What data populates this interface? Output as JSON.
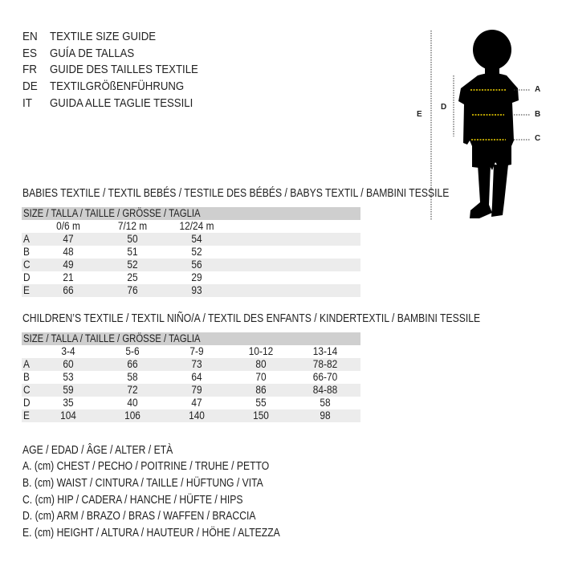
{
  "titles": [
    {
      "code": "EN",
      "text": "TEXTILE SIZE GUIDE"
    },
    {
      "code": "ES",
      "text": "GUÍA DE TALLAS"
    },
    {
      "code": "FR",
      "text": "GUIDE DES TAILLES TEXTILE"
    },
    {
      "code": "DE",
      "text": "TEXTILGRÖßENFÜHRUNG"
    },
    {
      "code": "IT",
      "text": "GUIDA ALLE TAGLIE TESSILI"
    }
  ],
  "babies": {
    "title": "BABIES TEXTILE / TEXTIL BEBÉS / TESTILE DES BÉBÉS / BABYS TEXTIL / BAMBINI TESSILE",
    "size_header": "SIZE / TALLA / TAILLE / GRÖSSE / TAGLIA",
    "columns": [
      "0/6 m",
      "7/12 m",
      "12/24 m"
    ],
    "rows": [
      {
        "label": "A",
        "values": [
          "47",
          "50",
          "54"
        ]
      },
      {
        "label": "B",
        "values": [
          "48",
          "51",
          "52"
        ]
      },
      {
        "label": "C",
        "values": [
          "49",
          "52",
          "56"
        ]
      },
      {
        "label": "D",
        "values": [
          "21",
          "25",
          "29"
        ]
      },
      {
        "label": "E",
        "values": [
          "66",
          "76",
          "93"
        ]
      }
    ]
  },
  "children": {
    "title": "CHILDREN’S TEXTILE / TEXTIL NIÑO/A / TEXTIL DES ENFANTS / KINDERTEXTIL / BAMBINI TESSILE",
    "size_header": "SIZE / TALLA / TAILLE / GRÖSSE / TAGLIA",
    "columns": [
      "3-4",
      "5-6",
      "7-9",
      "10-12",
      "13-14"
    ],
    "rows": [
      {
        "label": "A",
        "values": [
          "60",
          "66",
          "73",
          "80",
          "78-82"
        ]
      },
      {
        "label": "B",
        "values": [
          "53",
          "58",
          "64",
          "70",
          "66-70"
        ]
      },
      {
        "label": "C",
        "values": [
          "59",
          "72",
          "79",
          "86",
          "84-88"
        ]
      },
      {
        "label": "D",
        "values": [
          "35",
          "40",
          "47",
          "55",
          "58"
        ]
      },
      {
        "label": "E",
        "values": [
          "104",
          "106",
          "140",
          "150",
          "98"
        ]
      }
    ]
  },
  "legend": [
    "AGE / EDAD / ÂGE / ALTER / ETÀ",
    "A. (cm) CHEST / PECHO / POITRINE / TRUHE / PETTO",
    "B. (cm) WAIST / CINTURA / TAILLE / HÜFTUNG / VITA",
    "C. (cm) HIP / CADERA / HANCHE / HÜFTE / HIPS",
    "D. (cm) ARM / BRAZO / BRAS / WAFFEN / BRACCIA",
    "E. (cm) HEIGHT / ALTURA / HAUTEUR / HÖHE / ALTEZZA"
  ],
  "figure": {
    "labels": {
      "a": "A",
      "b": "B",
      "c": "C",
      "d": "D",
      "e": "E"
    },
    "marker_color": "#f2d400",
    "silhouette_color": "#000000"
  }
}
